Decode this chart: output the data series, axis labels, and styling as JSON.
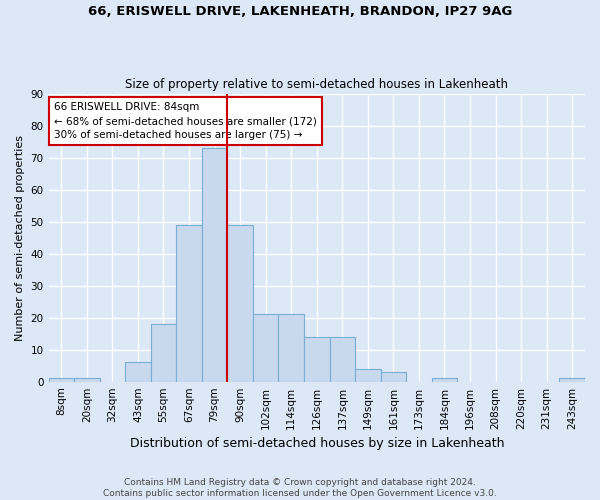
{
  "title": "66, ERISWELL DRIVE, LAKENHEATH, BRANDON, IP27 9AG",
  "subtitle": "Size of property relative to semi-detached houses in Lakenheath",
  "xlabel": "Distribution of semi-detached houses by size in Lakenheath",
  "ylabel": "Number of semi-detached properties",
  "bin_labels": [
    "8sqm",
    "20sqm",
    "32sqm",
    "43sqm",
    "55sqm",
    "67sqm",
    "79sqm",
    "90sqm",
    "102sqm",
    "114sqm",
    "126sqm",
    "137sqm",
    "149sqm",
    "161sqm",
    "173sqm",
    "184sqm",
    "196sqm",
    "208sqm",
    "220sqm",
    "231sqm",
    "243sqm"
  ],
  "bar_heights": [
    1,
    1,
    0,
    6,
    18,
    49,
    73,
    49,
    21,
    21,
    14,
    14,
    4,
    3,
    0,
    1,
    0,
    0,
    0,
    0,
    1
  ],
  "bar_color": "#c9d9ed",
  "bar_edge_color": "#7aadd4",
  "vline_index": 6,
  "marker_label": "66 ERISWELL DRIVE: 84sqm",
  "annotation_line1": "← 68% of semi-detached houses are smaller (172)",
  "annotation_line2": "30% of semi-detached houses are larger (75) →",
  "vline_color": "#cc0000",
  "box_edge_color": "#cc0000",
  "ylim": [
    0,
    90
  ],
  "yticks": [
    0,
    10,
    20,
    30,
    40,
    50,
    60,
    70,
    80,
    90
  ],
  "background_color": "#dce8f5",
  "plot_bg_color": "#dce8f5",
  "grid_color": "#ffffff",
  "footer": "Contains HM Land Registry data © Crown copyright and database right 2024.\nContains public sector information licensed under the Open Government Licence v3.0."
}
